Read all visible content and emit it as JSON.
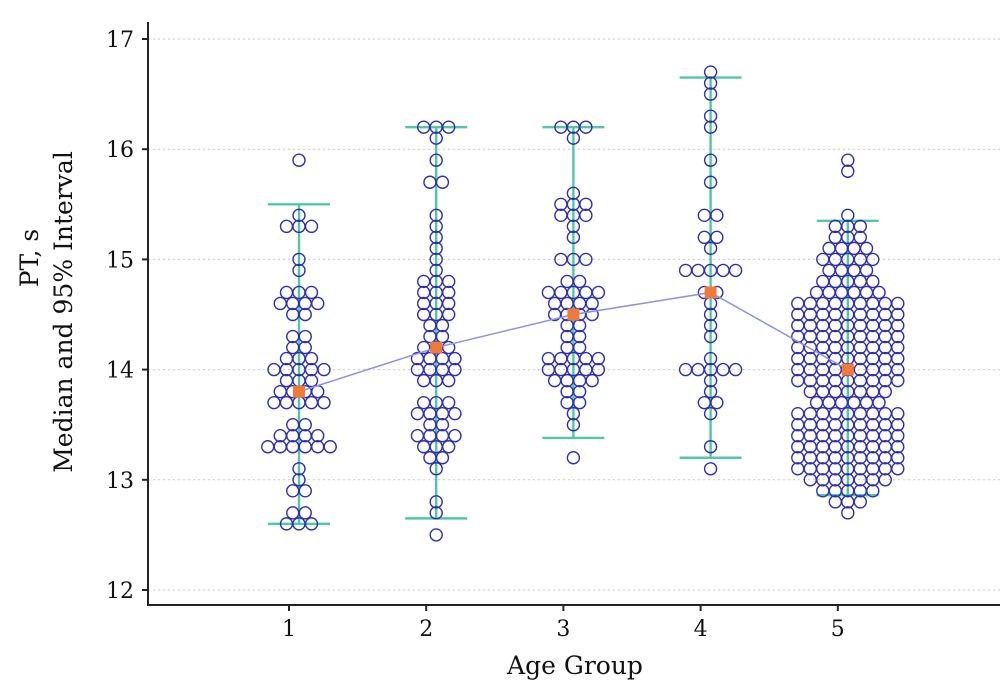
{
  "chart_data": {
    "type": "scatter",
    "title": "",
    "xlabel": "Age Group",
    "ylabel_lines": [
      "PT, s",
      "Median and 95% Interval"
    ],
    "x_ticks": [
      "1",
      "2",
      "3",
      "4",
      "5"
    ],
    "y_ticks": [
      "12",
      "13",
      "14",
      "15",
      "16",
      "17"
    ],
    "ylim": [
      12,
      17
    ],
    "grid": true,
    "groups": [
      {
        "group": "1",
        "median": 13.8,
        "ci": [
          12.6,
          15.5
        ],
        "points": [
          {
            "y": 15.9,
            "n": 1
          },
          {
            "y": 15.4,
            "n": 1
          },
          {
            "y": 15.3,
            "n": 3
          },
          {
            "y": 15.0,
            "n": 1
          },
          {
            "y": 14.9,
            "n": 1
          },
          {
            "y": 14.7,
            "n": 3
          },
          {
            "y": 14.6,
            "n": 4
          },
          {
            "y": 14.5,
            "n": 2
          },
          {
            "y": 14.3,
            "n": 2
          },
          {
            "y": 14.2,
            "n": 2
          },
          {
            "y": 14.1,
            "n": 3
          },
          {
            "y": 14.0,
            "n": 5
          },
          {
            "y": 13.9,
            "n": 3
          },
          {
            "y": 13.8,
            "n": 4
          },
          {
            "y": 13.7,
            "n": 5
          },
          {
            "y": 13.5,
            "n": 2
          },
          {
            "y": 13.4,
            "n": 4
          },
          {
            "y": 13.3,
            "n": 6
          },
          {
            "y": 13.1,
            "n": 1
          },
          {
            "y": 13.0,
            "n": 1
          },
          {
            "y": 12.9,
            "n": 2
          },
          {
            "y": 12.7,
            "n": 2
          },
          {
            "y": 12.6,
            "n": 3
          }
        ]
      },
      {
        "group": "2",
        "median": 14.2,
        "ci": [
          12.65,
          16.2
        ],
        "points": [
          {
            "y": 16.2,
            "n": 3
          },
          {
            "y": 16.1,
            "n": 1
          },
          {
            "y": 15.9,
            "n": 1
          },
          {
            "y": 15.7,
            "n": 2
          },
          {
            "y": 15.4,
            "n": 1
          },
          {
            "y": 15.3,
            "n": 1
          },
          {
            "y": 15.2,
            "n": 1
          },
          {
            "y": 15.1,
            "n": 1
          },
          {
            "y": 15.0,
            "n": 1
          },
          {
            "y": 14.9,
            "n": 1
          },
          {
            "y": 14.8,
            "n": 3
          },
          {
            "y": 14.7,
            "n": 3
          },
          {
            "y": 14.6,
            "n": 3
          },
          {
            "y": 14.5,
            "n": 3
          },
          {
            "y": 14.4,
            "n": 2
          },
          {
            "y": 14.3,
            "n": 2
          },
          {
            "y": 14.2,
            "n": 3
          },
          {
            "y": 14.1,
            "n": 4
          },
          {
            "y": 14.0,
            "n": 4
          },
          {
            "y": 13.9,
            "n": 3
          },
          {
            "y": 13.7,
            "n": 3
          },
          {
            "y": 13.6,
            "n": 4
          },
          {
            "y": 13.5,
            "n": 2
          },
          {
            "y": 13.4,
            "n": 4
          },
          {
            "y": 13.3,
            "n": 3
          },
          {
            "y": 13.2,
            "n": 2
          },
          {
            "y": 13.1,
            "n": 1
          },
          {
            "y": 12.8,
            "n": 1
          },
          {
            "y": 12.7,
            "n": 1
          },
          {
            "y": 12.5,
            "n": 1
          }
        ]
      },
      {
        "group": "3",
        "median": 14.5,
        "ci": [
          13.38,
          16.2
        ],
        "points": [
          {
            "y": 16.2,
            "n": 3
          },
          {
            "y": 16.1,
            "n": 1
          },
          {
            "y": 15.6,
            "n": 1
          },
          {
            "y": 15.5,
            "n": 3
          },
          {
            "y": 15.4,
            "n": 3
          },
          {
            "y": 15.3,
            "n": 1
          },
          {
            "y": 15.2,
            "n": 1
          },
          {
            "y": 15.0,
            "n": 3
          },
          {
            "y": 14.8,
            "n": 2
          },
          {
            "y": 14.7,
            "n": 5
          },
          {
            "y": 14.6,
            "n": 4
          },
          {
            "y": 14.5,
            "n": 4
          },
          {
            "y": 14.4,
            "n": 2
          },
          {
            "y": 14.3,
            "n": 2
          },
          {
            "y": 14.2,
            "n": 2
          },
          {
            "y": 14.1,
            "n": 5
          },
          {
            "y": 14.0,
            "n": 5
          },
          {
            "y": 13.9,
            "n": 4
          },
          {
            "y": 13.8,
            "n": 2
          },
          {
            "y": 13.7,
            "n": 2
          },
          {
            "y": 13.6,
            "n": 1
          },
          {
            "y": 13.5,
            "n": 1
          },
          {
            "y": 13.2,
            "n": 1
          }
        ]
      },
      {
        "group": "4",
        "median": 14.7,
        "ci": [
          13.2,
          16.65
        ],
        "points": [
          {
            "y": 16.7,
            "n": 1
          },
          {
            "y": 16.6,
            "n": 1
          },
          {
            "y": 16.5,
            "n": 1
          },
          {
            "y": 16.3,
            "n": 1
          },
          {
            "y": 16.2,
            "n": 1
          },
          {
            "y": 15.9,
            "n": 1
          },
          {
            "y": 15.7,
            "n": 1
          },
          {
            "y": 15.4,
            "n": 2
          },
          {
            "y": 15.2,
            "n": 2
          },
          {
            "y": 15.1,
            "n": 1
          },
          {
            "y": 14.9,
            "n": 5
          },
          {
            "y": 14.7,
            "n": 2
          },
          {
            "y": 14.6,
            "n": 1
          },
          {
            "y": 14.5,
            "n": 1
          },
          {
            "y": 14.4,
            "n": 1
          },
          {
            "y": 14.3,
            "n": 1
          },
          {
            "y": 14.1,
            "n": 1
          },
          {
            "y": 14.0,
            "n": 5
          },
          {
            "y": 13.9,
            "n": 1
          },
          {
            "y": 13.8,
            "n": 1
          },
          {
            "y": 13.7,
            "n": 2
          },
          {
            "y": 13.6,
            "n": 1
          },
          {
            "y": 13.3,
            "n": 1
          },
          {
            "y": 13.1,
            "n": 1
          }
        ]
      },
      {
        "group": "5",
        "median": 14.0,
        "ci": [
          12.86,
          15.35
        ],
        "points": [
          {
            "y": 15.9,
            "n": 1
          },
          {
            "y": 15.8,
            "n": 1
          },
          {
            "y": 15.4,
            "n": 1
          },
          {
            "y": 15.3,
            "n": 3
          },
          {
            "y": 15.2,
            "n": 3
          },
          {
            "y": 15.1,
            "n": 4
          },
          {
            "y": 15.0,
            "n": 5
          },
          {
            "y": 14.9,
            "n": 4
          },
          {
            "y": 14.8,
            "n": 5
          },
          {
            "y": 14.7,
            "n": 6
          },
          {
            "y": 14.6,
            "n": 9
          },
          {
            "y": 14.5,
            "n": 9
          },
          {
            "y": 14.4,
            "n": 9
          },
          {
            "y": 14.3,
            "n": 9
          },
          {
            "y": 14.2,
            "n": 9
          },
          {
            "y": 14.1,
            "n": 9
          },
          {
            "y": 14.0,
            "n": 9
          },
          {
            "y": 13.9,
            "n": 9
          },
          {
            "y": 13.8,
            "n": 7
          },
          {
            "y": 13.7,
            "n": 6
          },
          {
            "y": 13.6,
            "n": 9
          },
          {
            "y": 13.5,
            "n": 9
          },
          {
            "y": 13.4,
            "n": 9
          },
          {
            "y": 13.3,
            "n": 9
          },
          {
            "y": 13.2,
            "n": 9
          },
          {
            "y": 13.1,
            "n": 9
          },
          {
            "y": 13.0,
            "n": 7
          },
          {
            "y": 12.9,
            "n": 5
          },
          {
            "y": 12.8,
            "n": 3
          },
          {
            "y": 12.7,
            "n": 1
          }
        ]
      }
    ]
  },
  "colors": {
    "points": "#2f2fb3",
    "ci": "#52c7a8",
    "median_marker": "#f07a3a",
    "median_line": "#8d92e6"
  }
}
